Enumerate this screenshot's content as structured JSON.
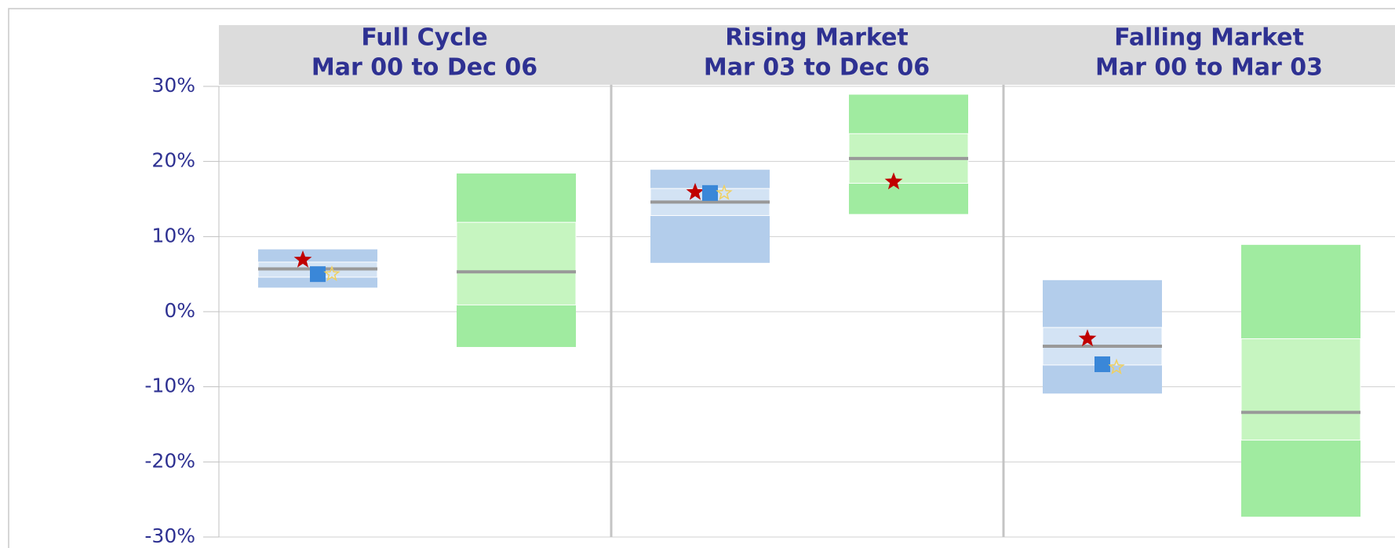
{
  "chart_data": {
    "type": "floating-box",
    "ylim": [
      -30,
      30
    ],
    "yticks": [
      {
        "value": -30,
        "label": "-30%"
      },
      {
        "value": -20,
        "label": "-20%"
      },
      {
        "value": -10,
        "label": "-10%"
      },
      {
        "value": 0,
        "label": "0%"
      },
      {
        "value": 10,
        "label": "10%"
      },
      {
        "value": 20,
        "label": "20%"
      },
      {
        "value": 30,
        "label": "30%"
      }
    ],
    "grid": true,
    "panels": [
      {
        "title": [
          "Full Cycle",
          "Mar 00 to Dec 06"
        ],
        "boxes": [
          {
            "outer_color": "#b3cdeb",
            "inner_color": "#d3e3f4",
            "low": 3.2,
            "q1": 4.6,
            "median": 5.7,
            "q3": 6.6,
            "high": 8.3,
            "markers": [
              {
                "shape": "star",
                "color": "#c00000",
                "value": 6.9
              },
              {
                "shape": "square",
                "color": "#3a87d8",
                "value": 5.0
              },
              {
                "shape": "star-outline",
                "color": "#f0d060",
                "value": 5.0
              }
            ]
          },
          {
            "outer_color": "#a0eba0",
            "inner_color": "#c6f5c0",
            "low": -4.7,
            "q1": 0.9,
            "median": 5.3,
            "q3": 11.9,
            "high": 18.4,
            "markers": []
          }
        ]
      },
      {
        "title": [
          "Rising Market",
          "Mar 03 to Dec 06"
        ],
        "boxes": [
          {
            "outer_color": "#b3cdeb",
            "inner_color": "#d3e3f4",
            "low": 6.5,
            "q1": 12.8,
            "median": 14.6,
            "q3": 16.4,
            "high": 18.9,
            "markers": [
              {
                "shape": "star",
                "color": "#c00000",
                "value": 15.9
              },
              {
                "shape": "square",
                "color": "#3a87d8",
                "value": 15.8
              },
              {
                "shape": "star-outline",
                "color": "#f0d060",
                "value": 15.8
              }
            ]
          },
          {
            "outer_color": "#a0eba0",
            "inner_color": "#c6f5c0",
            "low": 13.0,
            "q1": 17.1,
            "median": 20.4,
            "q3": 23.7,
            "high": 28.9,
            "markers": [
              {
                "shape": "star",
                "color": "#c00000",
                "value": 17.3
              }
            ]
          }
        ]
      },
      {
        "title": [
          "Falling Market",
          "Mar 00 to Mar 03"
        ],
        "boxes": [
          {
            "outer_color": "#b3cdeb",
            "inner_color": "#d3e3f4",
            "low": -10.9,
            "q1": -7.1,
            "median": -4.6,
            "q3": -2.1,
            "high": 4.2,
            "markers": [
              {
                "shape": "star",
                "color": "#c00000",
                "value": -3.6
              },
              {
                "shape": "square",
                "color": "#3a87d8",
                "value": -7.0
              },
              {
                "shape": "star-outline",
                "color": "#f0d060",
                "value": -7.4
              }
            ]
          },
          {
            "outer_color": "#a0eba0",
            "inner_color": "#c6f5c0",
            "low": -27.3,
            "q1": -17.1,
            "median": -13.4,
            "q3": -3.6,
            "high": 8.9,
            "markers": []
          }
        ]
      }
    ]
  }
}
